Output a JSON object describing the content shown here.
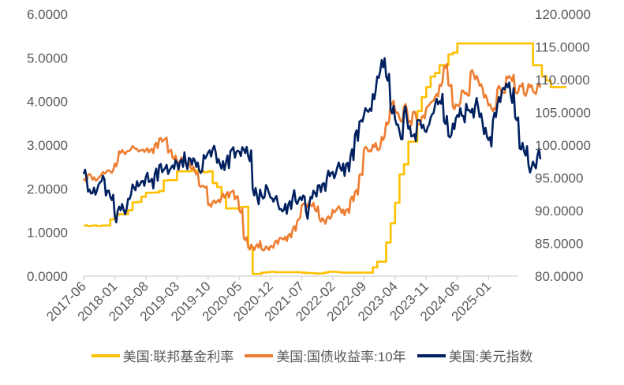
{
  "chart_data": {
    "type": "line",
    "title": "",
    "x_start": "2017-06",
    "x_step": "month",
    "x_tick_labels": [
      "2017-06",
      "2018-01",
      "2018-08",
      "2019-03",
      "2019-10",
      "2020-05",
      "2020-12",
      "2021-07",
      "2022-02",
      "2022-09",
      "2023-04",
      "2023-11",
      "2024-06",
      "2025-01"
    ],
    "y_left": {
      "ylim": [
        0,
        6
      ],
      "tick_labels": [
        "0.0000",
        "1.0000",
        "2.0000",
        "3.0000",
        "4.0000",
        "5.0000",
        "6.0000"
      ]
    },
    "y_right": {
      "ylim": [
        80,
        120
      ],
      "tick_labels": [
        "80.0000",
        "85.0000",
        "90.0000",
        "95.0000",
        "100.0000",
        "105.0000",
        "110.0000",
        "115.0000",
        "120.0000"
      ]
    },
    "grid": false,
    "legend_position": "bottom",
    "series": [
      {
        "name": "美国:联邦基金利率",
        "axis": "left",
        "color": "#FFC000",
        "values": [
          1.16,
          1.15,
          1.16,
          1.15,
          1.16,
          1.16,
          1.3,
          1.41,
          1.42,
          1.42,
          1.51,
          1.69,
          1.7,
          1.82,
          1.91,
          1.91,
          1.92,
          1.95,
          2.19,
          2.2,
          2.2,
          2.4,
          2.4,
          2.4,
          2.41,
          2.42,
          2.4,
          2.38,
          2.4,
          2.13,
          2.04,
          1.83,
          1.55,
          1.55,
          1.55,
          1.58,
          1.59,
          0.65,
          0.05,
          0.05,
          0.08,
          0.09,
          0.1,
          0.09,
          0.09,
          0.09,
          0.09,
          0.09,
          0.09,
          0.08,
          0.07,
          0.07,
          0.06,
          0.06,
          0.08,
          0.1,
          0.1,
          0.09,
          0.08,
          0.08,
          0.08,
          0.08,
          0.08,
          0.08,
          0.08,
          0.2,
          0.33,
          0.33,
          0.77,
          1.21,
          1.68,
          2.33,
          2.56,
          3.08,
          3.08,
          3.78,
          4.1,
          4.33,
          4.57,
          4.65,
          4.83,
          4.83,
          5.08,
          5.12,
          5.33,
          5.33,
          5.33,
          5.33,
          5.33,
          5.33,
          5.33,
          5.33,
          5.33,
          5.33,
          5.33,
          5.33,
          5.33,
          5.33,
          5.33,
          5.33,
          5.33,
          4.83,
          4.83,
          4.58,
          4.48,
          4.33,
          4.33,
          4.33,
          4.33
        ]
      },
      {
        "name": "美国:国债收益率:10年",
        "axis": "left",
        "color": "#ED7D31",
        "values": [
          2.19,
          2.32,
          2.21,
          2.2,
          2.33,
          2.37,
          2.4,
          2.58,
          2.86,
          2.84,
          2.87,
          2.98,
          2.91,
          2.89,
          2.89,
          2.89,
          3.0,
          3.15,
          3.12,
          2.83,
          2.71,
          2.63,
          2.72,
          2.57,
          2.5,
          2.4,
          2.07,
          2.06,
          1.63,
          1.7,
          1.71,
          1.81,
          1.86,
          1.92,
          1.76,
          1.5,
          0.87,
          0.66,
          0.67,
          0.73,
          0.62,
          0.68,
          0.69,
          0.79,
          0.87,
          0.84,
          0.93,
          1.08,
          1.26,
          1.61,
          1.64,
          1.62,
          1.52,
          1.32,
          1.28,
          1.37,
          1.52,
          1.55,
          1.45,
          1.52,
          1.76,
          1.93,
          2.32,
          2.89,
          2.85,
          3.01,
          2.9,
          3.19,
          3.52,
          3.98,
          3.8,
          3.62,
          3.88,
          3.53,
          3.75,
          3.48,
          3.64,
          3.84,
          3.97,
          4.11,
          4.38,
          4.8,
          4.37,
          3.88,
          3.91,
          4.25,
          4.2,
          4.68,
          4.51,
          4.36,
          4.09,
          3.91,
          3.78,
          4.28,
          4.18,
          4.57,
          4.54,
          4.21,
          4.36,
          4.17,
          4.4,
          4.24,
          4.35
        ]
      },
      {
        "name": "美国:美元指数",
        "axis": "right",
        "color": "#002060",
        "values": [
          95.6,
          92.9,
          92.7,
          93.1,
          94.5,
          92.3,
          92.1,
          89.2,
          90.6,
          90.1,
          91.8,
          94.0,
          94.5,
          94.5,
          95.2,
          94.5,
          95.6,
          96.9,
          96.2,
          95.6,
          96.9,
          97.3,
          97.8,
          97.2,
          97.9,
          97.7,
          96.1,
          98.5,
          98.9,
          99.4,
          97.3,
          96.4,
          97.4,
          99.1,
          98.1,
          99.0,
          99.4,
          98.3,
          93.4,
          92.1,
          92.3,
          93.9,
          92.0,
          91.9,
          90.2,
          90.1,
          90.9,
          92.1,
          91.0,
          91.6,
          89.8,
          92.1,
          92.7,
          93.9,
          94.2,
          96.1,
          95.9,
          96.6,
          96.1,
          97.1,
          98.4,
          101.6,
          103.6,
          104.6,
          105.1,
          107.8,
          110.5,
          113.0,
          110.5,
          105.5,
          104.0,
          102.1,
          105.0,
          102.5,
          101.4,
          103.8,
          102.6,
          102.0,
          104.2,
          106.2,
          106.7,
          103.6,
          101.4,
          103.3,
          104.6,
          104.5,
          106.3,
          105.0,
          106.0,
          104.3,
          101.7,
          100.8,
          103.8,
          106.2,
          108.3,
          109.4,
          107.6,
          104.2,
          99.5,
          99.0,
          96.9,
          97.5,
          98.4
        ]
      }
    ]
  }
}
